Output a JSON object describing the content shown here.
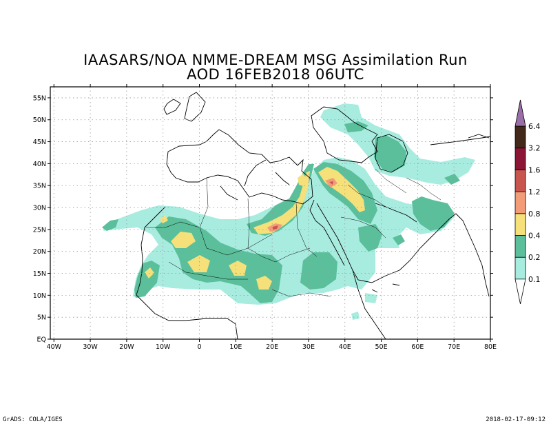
{
  "title": {
    "line1": "IAASARS/NOA NMME-DREAM MSG Assimilation Run",
    "line2": "AOD  16FEB2018 06UTC"
  },
  "axes": {
    "lat_labels": [
      "55N",
      "50N",
      "45N",
      "40N",
      "35N",
      "30N",
      "25N",
      "20N",
      "15N",
      "10N",
      "5N",
      "EQ"
    ],
    "lat_values": [
      55,
      50,
      45,
      40,
      35,
      30,
      25,
      20,
      15,
      10,
      5,
      0
    ],
    "lon_labels": [
      "40W",
      "30W",
      "20W",
      "10W",
      "0",
      "10E",
      "20E",
      "30E",
      "40E",
      "50E",
      "60E",
      "70E",
      "80E"
    ],
    "lon_values": [
      -40,
      -30,
      -20,
      -10,
      0,
      10,
      20,
      30,
      40,
      50,
      60,
      70,
      80
    ],
    "lon_range": [
      -41,
      80
    ],
    "lat_range": [
      0,
      57.5
    ],
    "grid": "dotted"
  },
  "colorbar": {
    "labels": [
      "6.4",
      "3.2",
      "1.6",
      "1.2",
      "0.8",
      "0.4",
      "0.2",
      "0.1"
    ],
    "levels": [
      0.1,
      0.2,
      0.4,
      0.8,
      1.2,
      1.6,
      3.2,
      6.4
    ],
    "colors": [
      "#a8ece0",
      "#5bbf9b",
      "#f5e07a",
      "#f29c78",
      "#c8564e",
      "#8c1536",
      "#42291a",
      "#9a6ea6"
    ]
  },
  "footer": {
    "left": "GrADS: COLA/IGES",
    "right": "2018-02-17-09:12"
  }
}
